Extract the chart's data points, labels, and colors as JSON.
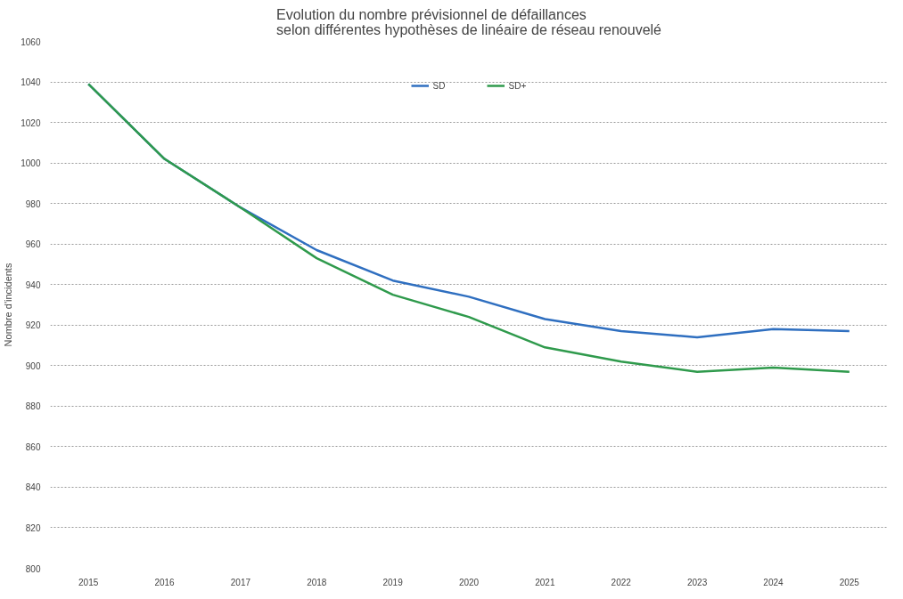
{
  "chart_data": {
    "type": "line",
    "title": "Evolution du nombre prévisionnel de défaillances\nselon différentes hypothèses de linéaire de réseau renouvelé",
    "ylabel": "Nombre d'incidents",
    "categories": [
      "2015",
      "2016",
      "2017",
      "2018",
      "2019",
      "2020",
      "2021",
      "2022",
      "2023",
      "2024",
      "2025"
    ],
    "series": [
      {
        "name": "SD",
        "color": "#2f6fc0",
        "values": [
          1039,
          1002,
          978,
          957,
          942,
          934,
          923,
          917,
          914,
          918,
          917
        ]
      },
      {
        "name": "SD+",
        "color": "#2f9a4c",
        "values": [
          1039,
          1002,
          978,
          953,
          935,
          924,
          909,
          902,
          897,
          899,
          897
        ]
      }
    ],
    "ylim": [
      800,
      1060
    ],
    "yticks": [
      800,
      820,
      840,
      860,
      880,
      900,
      920,
      940,
      960,
      980,
      1000,
      1020,
      1040,
      1060
    ],
    "grid": "y",
    "legend": "top",
    "line_style": "solid"
  }
}
